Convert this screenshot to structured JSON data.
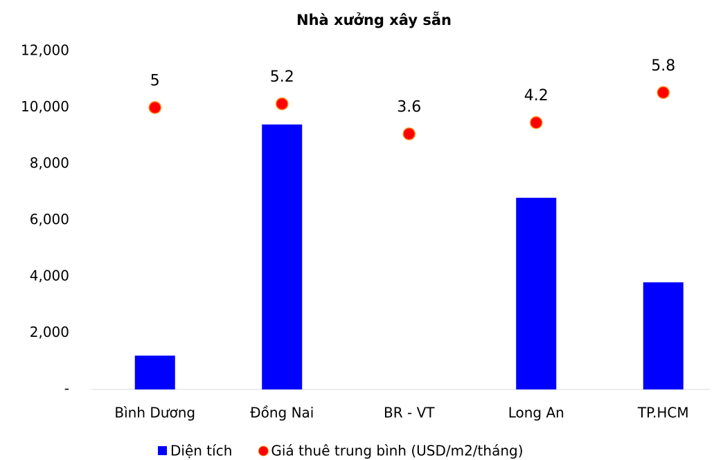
{
  "chart_data": {
    "type": "bar-dot",
    "title": "Nhà xưởng xây sẵn",
    "categories": [
      "Bình Dương",
      "Đồng Nai",
      "BR - VT",
      "Long An",
      "TP.HCM"
    ],
    "series": [
      {
        "name": "Diện tích",
        "type": "bar",
        "color": "#0000ff",
        "values": [
          1200,
          9400,
          0,
          6800,
          3800
        ]
      },
      {
        "name": "Giá thuê trung bình (USD/m2/tháng)",
        "type": "dot",
        "axis": "y2",
        "color": "#ff0000",
        "values": [
          5,
          5.2,
          3.6,
          4.2,
          5.8
        ]
      }
    ],
    "ylim": [
      0,
      12000
    ],
    "yticks": [
      {
        "value": 0,
        "label": "-"
      },
      {
        "value": 2000,
        "label": "2,000"
      },
      {
        "value": 4000,
        "label": "4,000"
      },
      {
        "value": 6000,
        "label": "6,000"
      },
      {
        "value": 8000,
        "label": "8,000"
      },
      {
        "value": 10000,
        "label": "10,000"
      },
      {
        "value": 12000,
        "label": "12,000"
      }
    ],
    "y2lim": [
      -10,
      8
    ],
    "grid": false,
    "legend": "bottom"
  }
}
